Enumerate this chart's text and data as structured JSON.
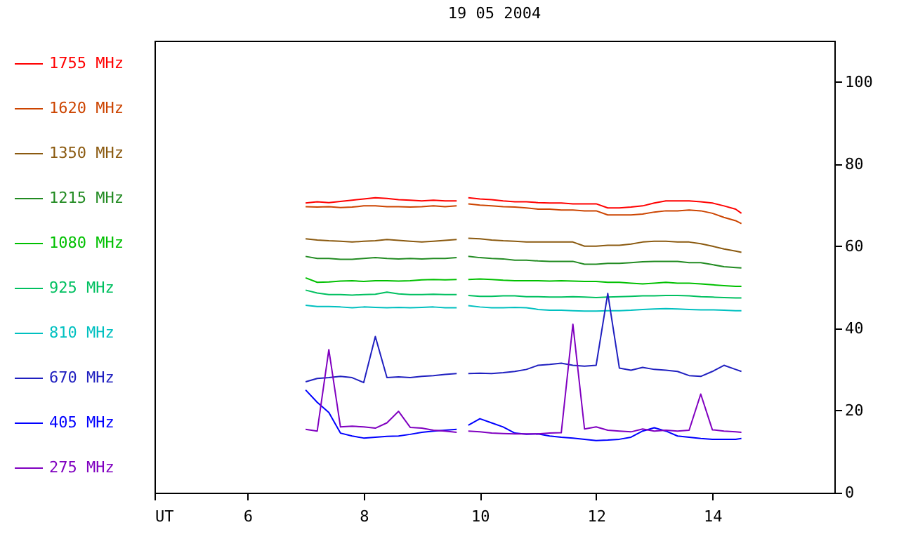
{
  "chart_data": {
    "type": "line",
    "title": "19 05 2004",
    "legend": "left",
    "marker": "none",
    "line_style": "solid",
    "grid": false,
    "xlim": [
      4.4,
      16.1
    ],
    "xticks": [
      {
        "value": 4.4,
        "label": "UT"
      },
      6,
      8,
      10,
      12,
      14
    ],
    "ylim": [
      0,
      110
    ],
    "yticks": [
      0,
      20,
      40,
      60,
      80,
      100
    ],
    "x": [
      7.0,
      7.2,
      7.4,
      7.6,
      7.8,
      8.0,
      8.2,
      8.4,
      8.6,
      8.8,
      9.0,
      9.2,
      9.4,
      9.6,
      9.7,
      9.8,
      10.0,
      10.2,
      10.4,
      10.6,
      10.8,
      11.0,
      11.2,
      11.4,
      11.6,
      11.8,
      12.0,
      12.2,
      12.4,
      12.6,
      12.8,
      13.0,
      13.2,
      13.4,
      13.6,
      13.8,
      14.0,
      14.2,
      14.4,
      14.5
    ],
    "series": [
      {
        "name": "1755 MHz",
        "color": "#ff0000",
        "values": [
          70.5,
          70.8,
          70.6,
          70.9,
          71.2,
          71.5,
          71.8,
          71.6,
          71.3,
          71.2,
          71.0,
          71.2,
          71.0,
          71.0,
          null,
          71.8,
          71.5,
          71.3,
          71.0,
          70.8,
          70.8,
          70.6,
          70.5,
          70.5,
          70.3,
          70.3,
          70.3,
          69.3,
          69.3,
          69.5,
          69.8,
          70.5,
          71.0,
          71.0,
          71.0,
          70.8,
          70.5,
          69.8,
          69.0,
          68.0
        ]
      },
      {
        "name": "1620 MHz",
        "color": "#cc4400",
        "values": [
          69.6,
          69.5,
          69.6,
          69.4,
          69.5,
          69.8,
          69.8,
          69.6,
          69.6,
          69.5,
          69.6,
          69.8,
          69.6,
          69.8,
          null,
          70.3,
          70.0,
          69.8,
          69.6,
          69.5,
          69.3,
          69.0,
          69.0,
          68.8,
          68.8,
          68.6,
          68.6,
          67.6,
          67.6,
          67.6,
          67.8,
          68.3,
          68.6,
          68.6,
          68.8,
          68.6,
          68.0,
          67.0,
          66.2,
          65.5
        ]
      },
      {
        "name": "1350 MHz",
        "color": "#8b5a10",
        "values": [
          61.8,
          61.5,
          61.3,
          61.2,
          61.0,
          61.2,
          61.3,
          61.6,
          61.4,
          61.2,
          61.0,
          61.2,
          61.4,
          61.6,
          null,
          61.9,
          61.8,
          61.5,
          61.3,
          61.2,
          61.0,
          61.0,
          61.0,
          61.0,
          61.0,
          60.0,
          60.0,
          60.2,
          60.2,
          60.5,
          61.0,
          61.2,
          61.2,
          61.0,
          61.0,
          60.6,
          60.0,
          59.3,
          58.8,
          58.5
        ]
      },
      {
        "name": "1215 MHz",
        "color": "#228b22",
        "values": [
          57.5,
          57.0,
          57.0,
          56.8,
          56.8,
          57.0,
          57.2,
          57.0,
          56.9,
          57.0,
          56.9,
          57.0,
          57.0,
          57.2,
          null,
          57.5,
          57.2,
          57.0,
          56.9,
          56.6,
          56.6,
          56.4,
          56.3,
          56.3,
          56.3,
          55.6,
          55.6,
          55.8,
          55.8,
          56.0,
          56.2,
          56.3,
          56.3,
          56.3,
          56.0,
          56.0,
          55.5,
          55.0,
          54.8,
          54.7
        ]
      },
      {
        "name": "1080 MHz",
        "color": "#00c000",
        "values": [
          52.3,
          51.2,
          51.3,
          51.5,
          51.6,
          51.4,
          51.6,
          51.6,
          51.5,
          51.6,
          51.8,
          51.9,
          51.8,
          51.9,
          null,
          51.9,
          52.0,
          51.9,
          51.7,
          51.6,
          51.6,
          51.6,
          51.5,
          51.6,
          51.5,
          51.4,
          51.4,
          51.2,
          51.2,
          51.0,
          50.8,
          51.0,
          51.2,
          51.0,
          51.0,
          50.8,
          50.6,
          50.4,
          50.2,
          50.2
        ]
      },
      {
        "name": "925 MHz",
        "color": "#00c060",
        "values": [
          49.3,
          48.6,
          48.2,
          48.2,
          48.1,
          48.2,
          48.3,
          48.8,
          48.4,
          48.2,
          48.2,
          48.3,
          48.2,
          48.2,
          null,
          48.0,
          47.8,
          47.8,
          47.9,
          47.9,
          47.7,
          47.7,
          47.6,
          47.6,
          47.7,
          47.6,
          47.5,
          47.6,
          47.7,
          47.8,
          47.9,
          47.9,
          48.0,
          48.0,
          47.9,
          47.7,
          47.6,
          47.5,
          47.4,
          47.4
        ]
      },
      {
        "name": "810 MHz",
        "color": "#00c0c0",
        "values": [
          45.6,
          45.3,
          45.3,
          45.2,
          45.0,
          45.2,
          45.1,
          45.0,
          45.1,
          45.0,
          45.1,
          45.2,
          45.0,
          45.0,
          null,
          45.5,
          45.2,
          45.0,
          45.0,
          45.1,
          45.0,
          44.6,
          44.4,
          44.4,
          44.3,
          44.2,
          44.2,
          44.3,
          44.3,
          44.4,
          44.6,
          44.7,
          44.8,
          44.7,
          44.6,
          44.5,
          44.5,
          44.4,
          44.3,
          44.3
        ]
      },
      {
        "name": "670 MHz",
        "color": "#2020c0",
        "values": [
          27.0,
          27.8,
          28.0,
          28.3,
          28.0,
          26.8,
          38.0,
          28.0,
          28.2,
          28.0,
          28.3,
          28.5,
          28.8,
          29.0,
          null,
          29.0,
          29.1,
          29.0,
          29.2,
          29.5,
          30.0,
          31.0,
          31.2,
          31.5,
          31.0,
          30.8,
          31.0,
          48.5,
          30.3,
          29.8,
          30.5,
          30.0,
          29.8,
          29.5,
          28.5,
          28.3,
          29.5,
          31.0,
          30.0,
          29.5
        ]
      },
      {
        "name": "405 MHz",
        "color": "#0000ff",
        "values": [
          25.0,
          22.0,
          19.5,
          14.5,
          13.8,
          13.3,
          13.5,
          13.7,
          13.8,
          14.2,
          14.7,
          15.0,
          15.2,
          15.4,
          null,
          16.4,
          18.0,
          17.0,
          16.0,
          14.5,
          14.2,
          14.3,
          13.8,
          13.5,
          13.3,
          13.0,
          12.7,
          12.8,
          13.0,
          13.5,
          15.0,
          15.8,
          15.0,
          13.8,
          13.5,
          13.2,
          13.0,
          13.0,
          13.0,
          13.2
        ]
      },
      {
        "name": "275 MHz",
        "color": "#8000c0",
        "values": [
          15.4,
          15.0,
          34.8,
          16.0,
          16.2,
          16.0,
          15.7,
          17.0,
          19.8,
          15.9,
          15.7,
          15.2,
          15.0,
          14.7,
          null,
          15.0,
          14.8,
          14.5,
          14.4,
          14.3,
          14.3,
          14.3,
          14.5,
          14.6,
          41.0,
          15.5,
          16.0,
          15.2,
          15.0,
          14.8,
          15.5,
          15.0,
          15.2,
          15.0,
          15.2,
          24.0,
          15.3,
          15.0,
          14.8,
          14.7
        ]
      }
    ]
  }
}
